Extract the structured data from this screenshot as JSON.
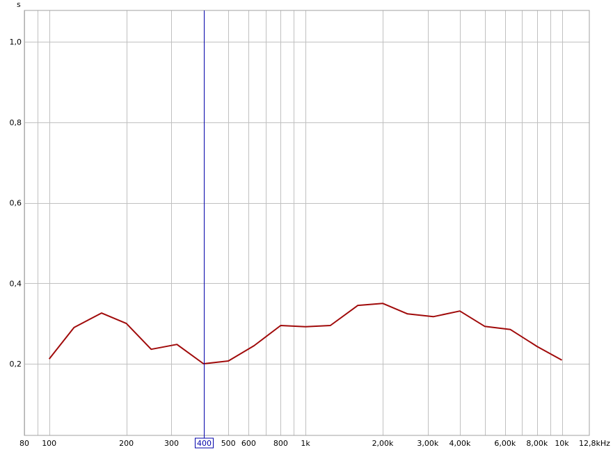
{
  "chart_data": {
    "type": "line",
    "title": "",
    "ylabel": "s",
    "xlabel": "",
    "x_scale": "log",
    "xlim": [
      80,
      12800
    ],
    "ylim": [
      0.022,
      1.078
    ],
    "grid": true,
    "x_gridlines": [
      80,
      90,
      100,
      200,
      300,
      400,
      500,
      600,
      700,
      800,
      900,
      1000,
      2000,
      3000,
      4000,
      5000,
      6000,
      7000,
      8000,
      9000,
      10000
    ],
    "y_gridlines": [
      0.2,
      0.4,
      0.6,
      0.8,
      1.0
    ],
    "x_ticks": [
      {
        "value": 80,
        "label": "80"
      },
      {
        "value": 100,
        "label": "100"
      },
      {
        "value": 200,
        "label": "200"
      },
      {
        "value": 300,
        "label": "300"
      },
      {
        "value": 500,
        "label": "500"
      },
      {
        "value": 600,
        "label": "600"
      },
      {
        "value": 800,
        "label": "800"
      },
      {
        "value": 1000,
        "label": "1k"
      },
      {
        "value": 2000,
        "label": "2,00k"
      },
      {
        "value": 3000,
        "label": "3,00k"
      },
      {
        "value": 4000,
        "label": "4,00k"
      },
      {
        "value": 6000,
        "label": "6,00k"
      },
      {
        "value": 8000,
        "label": "8,00k"
      },
      {
        "value": 10000,
        "label": "10k"
      },
      {
        "value": 12800,
        "label": "12,8kHz"
      }
    ],
    "y_ticks": [
      {
        "value": 1.0,
        "label": "1,0"
      },
      {
        "value": 0.8,
        "label": "0,8"
      },
      {
        "value": 0.6,
        "label": "0,6"
      },
      {
        "value": 0.4,
        "label": "0,4"
      },
      {
        "value": 0.2,
        "label": "0,2"
      }
    ],
    "cursor": {
      "value": 400,
      "label": "400",
      "color": "#0000aa"
    },
    "series": [
      {
        "color": "#a00a0a",
        "x": [
          100,
          125,
          160,
          200,
          250,
          315,
          400,
          500,
          630,
          800,
          1000,
          1250,
          1600,
          2000,
          2500,
          3150,
          4000,
          5000,
          6300,
          8000,
          10000
        ],
        "y": [
          0.212,
          0.29,
          0.326,
          0.3,
          0.236,
          0.248,
          0.2,
          0.207,
          0.245,
          0.295,
          0.292,
          0.295,
          0.345,
          0.35,
          0.324,
          0.317,
          0.331,
          0.293,
          0.285,
          0.243,
          0.209
        ]
      }
    ],
    "colors": {
      "grid": "#c0c0c0",
      "axis": "#a0a0a0",
      "background": "#ffffff"
    }
  }
}
